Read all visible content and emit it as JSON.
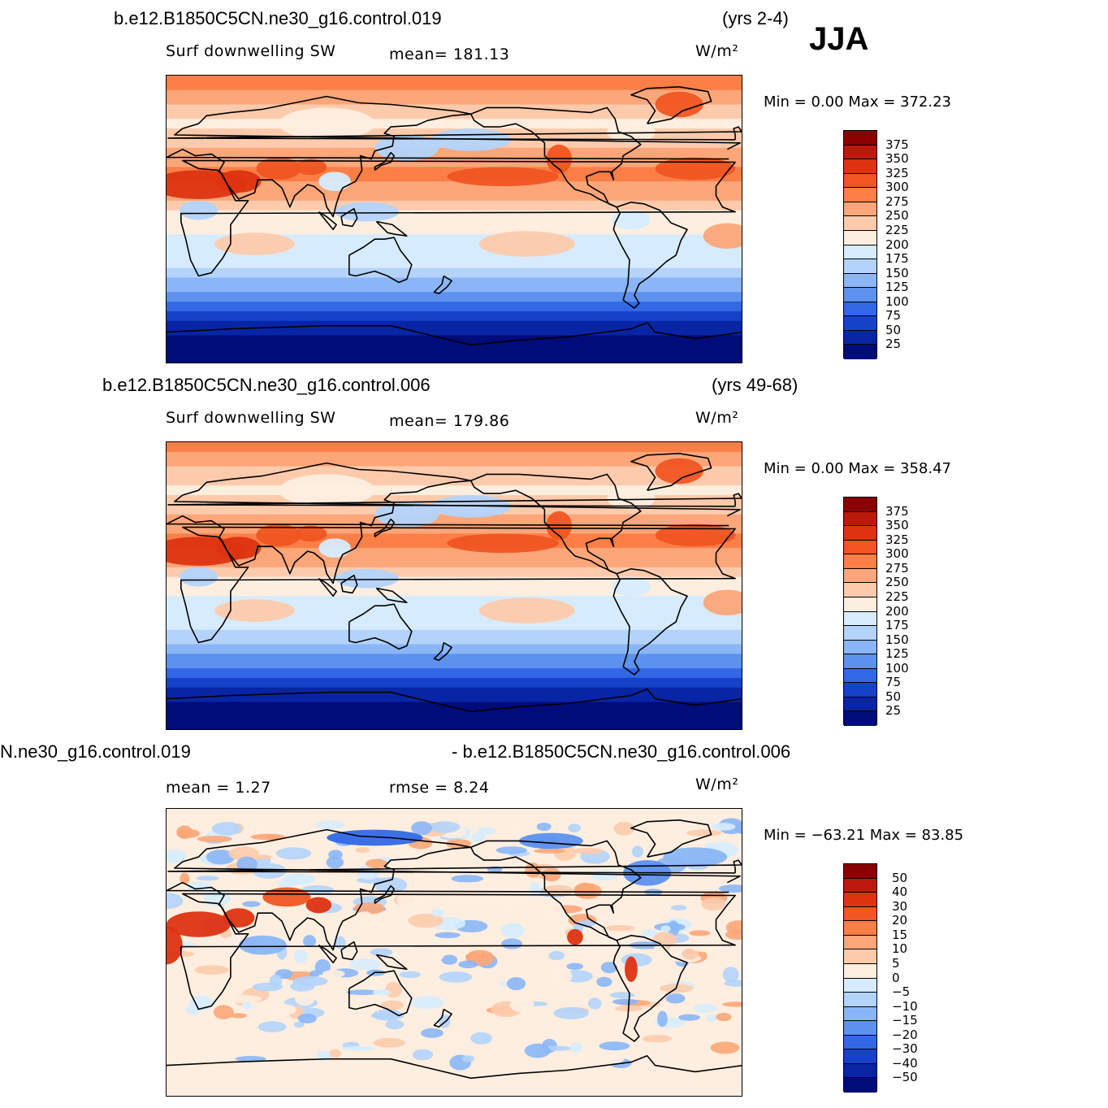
{
  "season": "JJA",
  "panels": [
    {
      "case_label": "b.e12.B1850C5CN.ne30_g16.control.019",
      "years": "(yrs 2-4)",
      "variable": "Surf  downwelling  SW",
      "stat1": "mean=  181.13",
      "stat2": "",
      "units": "W/m²",
      "minmax": "Min  =      0.00  Max  =  372.23",
      "colorbar_labels": [
        "375",
        "350",
        "325",
        "300",
        "275",
        "250",
        "225",
        "200",
        "175",
        "150",
        "125",
        "100",
        "75",
        "50",
        "25"
      ]
    },
    {
      "case_label": "b.e12.B1850C5CN.ne30_g16.control.006",
      "years": "(yrs 49-68)",
      "variable": "Surf  downwelling  SW",
      "stat1": "mean=  179.86",
      "stat2": "",
      "units": "W/m²",
      "minmax": "Min  =      0.00  Max  =  358.47",
      "colorbar_labels": [
        "375",
        "350",
        "325",
        "300",
        "275",
        "250",
        "225",
        "200",
        "175",
        "150",
        "125",
        "100",
        "75",
        "50",
        "25"
      ]
    },
    {
      "case_label": "N.ne30_g16.control.019",
      "case_label_right": "- b.e12.B1850C5CN.ne30_g16.control.006",
      "stat1": "mean  =       1.27",
      "stat2": "rmse  =      8.24",
      "units": "W/m²",
      "minmax": "Min  = −63.21  Max  =    83.85",
      "colorbar_labels": [
        "50",
        "40",
        "30",
        "20",
        "15",
        "10",
        "5",
        "0",
        "−5",
        "−10",
        "−15",
        "−20",
        "−30",
        "−40",
        "−50"
      ]
    }
  ],
  "colors": {
    "abs_scale": [
      "#8b0000",
      "#bb1a0a",
      "#dd3311",
      "#f05522",
      "#fb7f47",
      "#fca679",
      "#fdcbac",
      "#feeee0",
      "#d6ecfe",
      "#b3d3fb",
      "#8ab6f7",
      "#5d91ef",
      "#3268e6",
      "#1542c8",
      "#0725a5",
      "#000c7a"
    ],
    "diff_scale": [
      "#8b0000",
      "#bb1a0a",
      "#dd3311",
      "#f05522",
      "#fb7f47",
      "#fca679",
      "#fdcbac",
      "#feeee0",
      "#d6ecfe",
      "#b3d3fb",
      "#8ab6f7",
      "#5d91ef",
      "#3268e6",
      "#1542c8",
      "#0725a5",
      "#000c7a"
    ]
  },
  "chart_data": [
    {
      "type": "heatmap",
      "title": "b.e12.B1850C5CN.ne30_g16.control.019",
      "variable": "Surf  downwelling  SW",
      "period": "(yrs 2-4)",
      "season": "JJA",
      "units": "W/m²",
      "mean": 181.13,
      "min": 0.0,
      "max": 372.23,
      "contour_levels": [
        25,
        50,
        75,
        100,
        125,
        150,
        175,
        200,
        225,
        250,
        275,
        300,
        325,
        350,
        375
      ],
      "x_range_deg_lon": [
        0,
        360
      ],
      "y_range_deg_lat": [
        -90,
        90
      ],
      "zonal_profile_lat": [
        90,
        75,
        60,
        45,
        30,
        15,
        0,
        -15,
        -30,
        -45,
        -60,
        -75,
        -90
      ],
      "zonal_profile_value": [
        300,
        255,
        215,
        250,
        285,
        255,
        210,
        195,
        175,
        120,
        60,
        15,
        5
      ]
    },
    {
      "type": "heatmap",
      "title": "b.e12.B1850C5CN.ne30_g16.control.006",
      "variable": "Surf  downwelling  SW",
      "period": "(yrs 49-68)",
      "season": "JJA",
      "units": "W/m²",
      "mean": 179.86,
      "min": 0.0,
      "max": 358.47,
      "contour_levels": [
        25,
        50,
        75,
        100,
        125,
        150,
        175,
        200,
        225,
        250,
        275,
        300,
        325,
        350,
        375
      ],
      "x_range_deg_lon": [
        0,
        360
      ],
      "y_range_deg_lat": [
        -90,
        90
      ],
      "zonal_profile_lat": [
        90,
        75,
        60,
        45,
        30,
        15,
        0,
        -15,
        -30,
        -45,
        -60,
        -75,
        -90
      ],
      "zonal_profile_value": [
        295,
        250,
        215,
        250,
        285,
        255,
        205,
        190,
        172,
        118,
        58,
        14,
        5
      ]
    },
    {
      "type": "heatmap",
      "title": "N.ne30_g16.control.019 - b.e12.B1850C5CN.ne30_g16.control.006",
      "season": "JJA",
      "units": "W/m²",
      "mean": 1.27,
      "rmse": 8.24,
      "min": -63.21,
      "max": 83.85,
      "contour_levels": [
        -50,
        -40,
        -30,
        -20,
        -15,
        -10,
        -5,
        0,
        5,
        10,
        15,
        20,
        30,
        40,
        50
      ],
      "x_range_deg_lon": [
        0,
        360
      ],
      "y_range_deg_lat": [
        -90,
        90
      ]
    }
  ]
}
